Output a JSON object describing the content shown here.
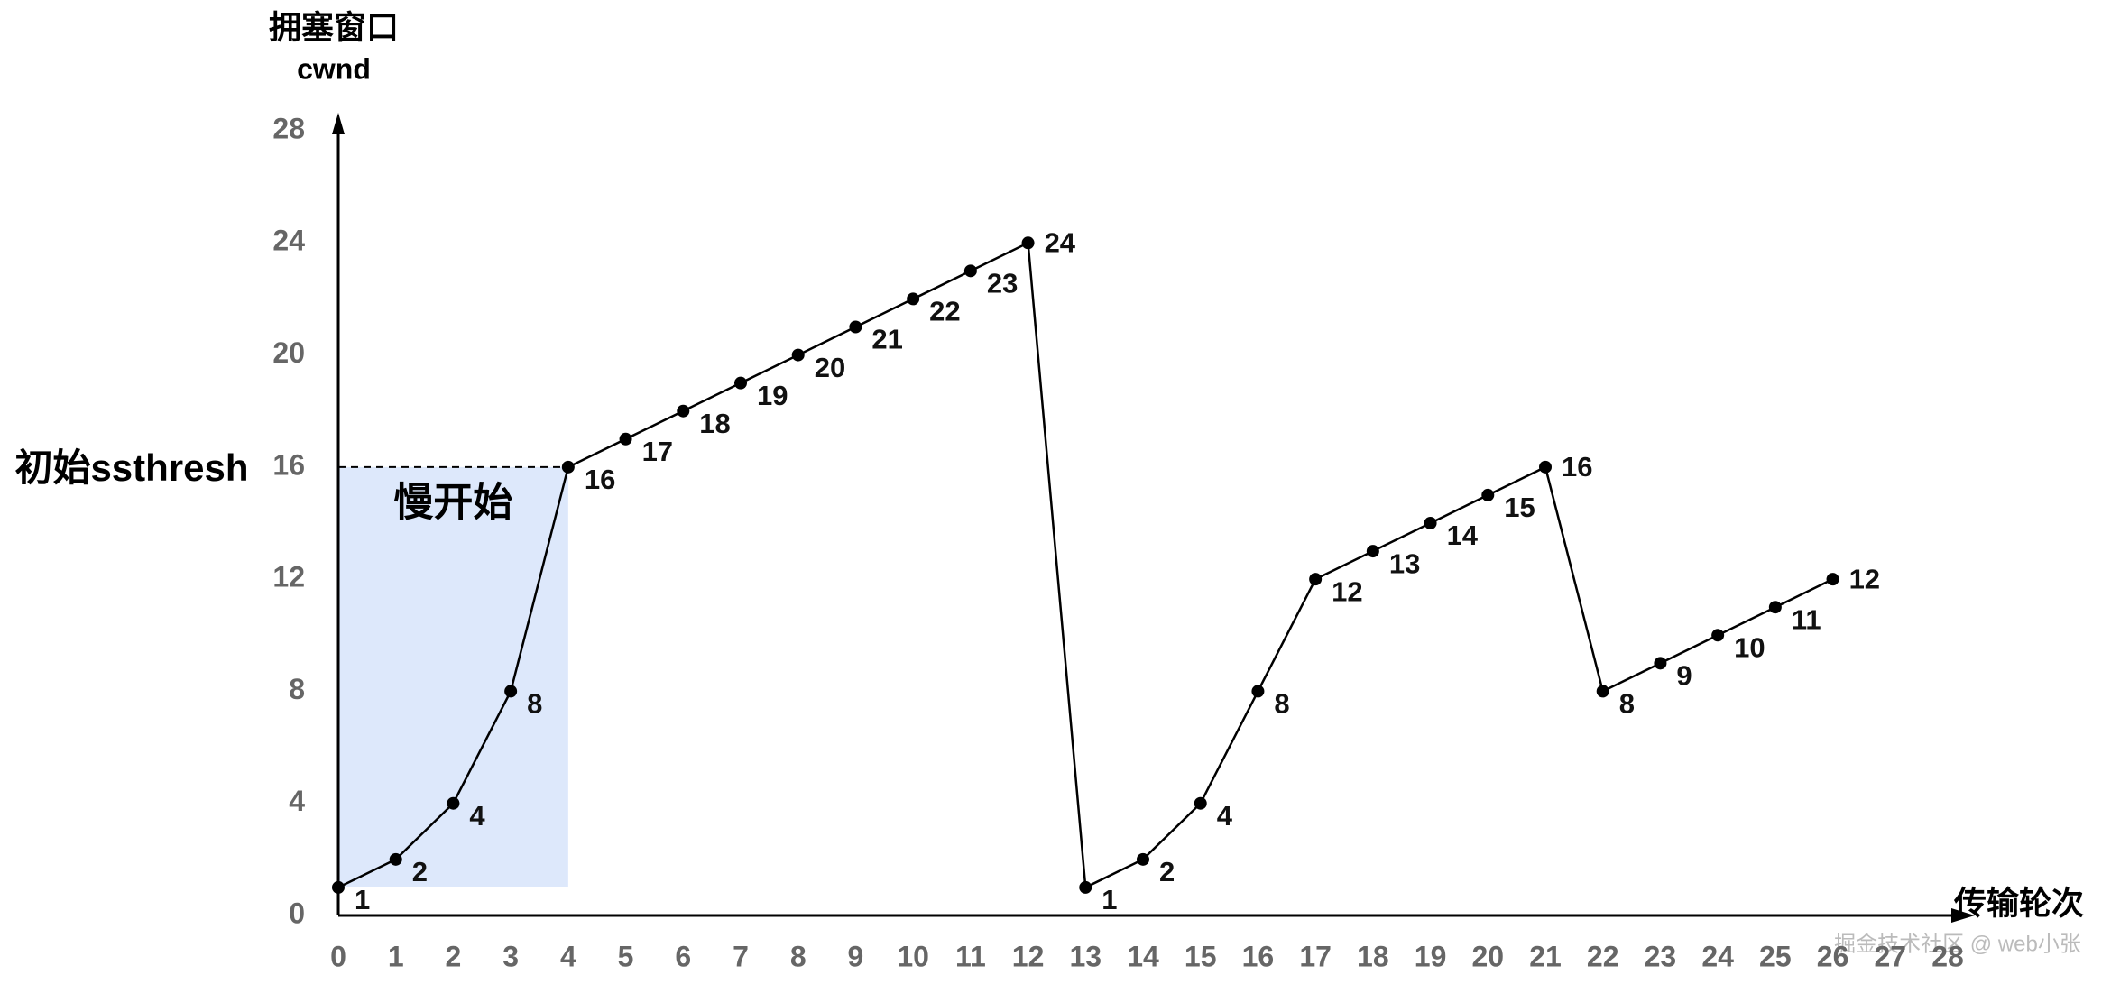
{
  "chart_data": {
    "type": "line",
    "y_axis_label": "拥塞窗口",
    "y_axis_sublabel": "cwnd",
    "x_axis_label": "传输轮次",
    "x": [
      0,
      1,
      2,
      3,
      4,
      5,
      6,
      7,
      8,
      9,
      10,
      11,
      12,
      13,
      14,
      15,
      16,
      17,
      18,
      19,
      20,
      21,
      22,
      23,
      24,
      25,
      26
    ],
    "series": [
      {
        "color": "#000000",
        "values": [
          1,
          2,
          4,
          8,
          16,
          17,
          18,
          19,
          20,
          21,
          22,
          23,
          24,
          1,
          2,
          4,
          8,
          12,
          13,
          14,
          15,
          16,
          8,
          9,
          10,
          11,
          12
        ]
      }
    ],
    "xlim": [
      0,
      28
    ],
    "xticks": [
      0,
      1,
      2,
      3,
      4,
      5,
      6,
      7,
      8,
      9,
      10,
      11,
      12,
      13,
      14,
      15,
      16,
      17,
      18,
      19,
      20,
      21,
      22,
      23,
      24,
      25,
      26,
      27,
      28
    ],
    "ylim": [
      0,
      28
    ],
    "yticks": [
      0,
      4,
      8,
      12,
      16,
      20,
      24,
      28
    ],
    "ssthresh_line": {
      "label": "初始ssthresh",
      "value": 16
    },
    "shaded_region": {
      "label": "慢开始",
      "xrange": [
        0,
        4
      ],
      "yrange": [
        1,
        16
      ],
      "color": "#dde8fb"
    },
    "watermark": "掘金技术社区 @ web小张"
  }
}
